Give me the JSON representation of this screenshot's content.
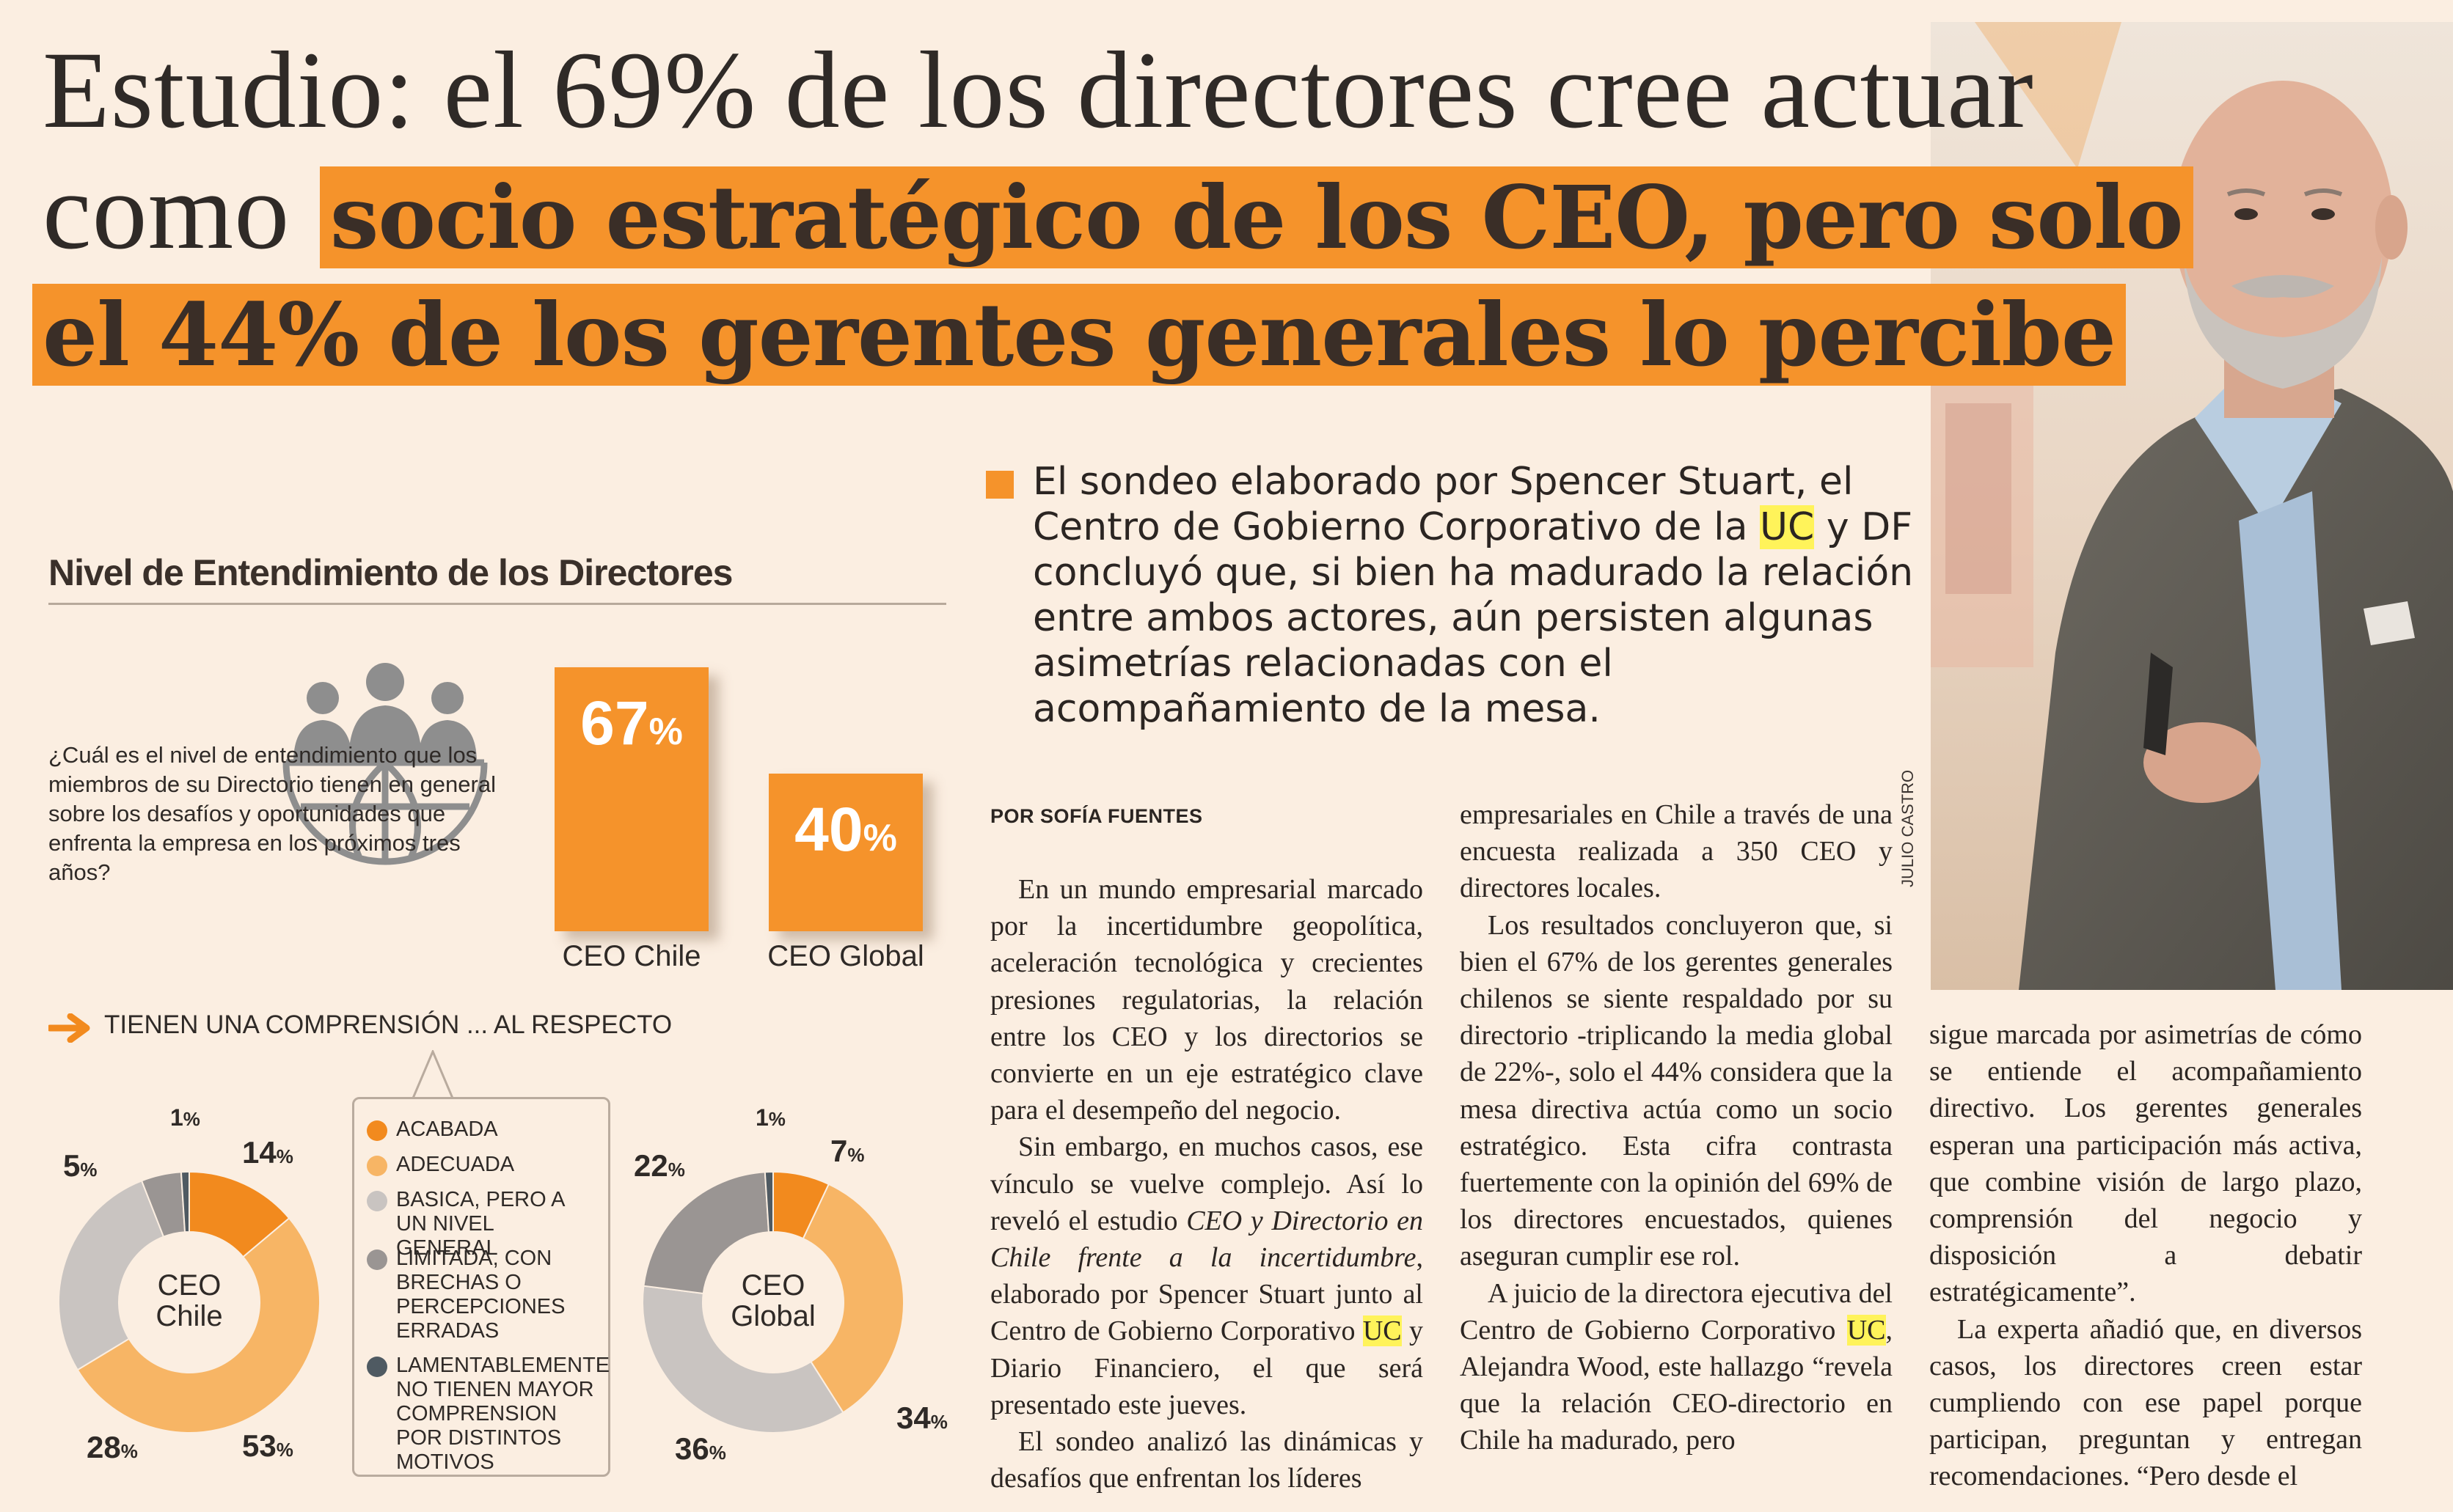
{
  "headline": {
    "line1": "Estudio: el 69% de los directores cree actuar",
    "line2_light": "como",
    "line2_bold": "socio estratégico de los CEO, pero solo",
    "line3_bold": "el 44% de los gerentes generales lo percibe"
  },
  "photo": {
    "credit": "JULIO CASTRO"
  },
  "lead": {
    "part1": "El sondeo elaborado por Spencer Stuart, el Centro de Gobierno Corporativo de la",
    "uc": "UC",
    "part2": "y DF concluyó que, si bien ha madurado la relación entre ambos actores, aún persisten algunas asimetrías relacionadas con el acompañamiento de la mesa."
  },
  "byline": "POR SOFÍA FUENTES",
  "infographic": {
    "title": "Nivel de Entendimiento de los Directores",
    "question": "¿Cuál es el nivel de entendimiento que los miembros de su Directorio tienen en general sobre los desafíos y oportunidades que enfrenta la empresa en los próximos tres años?",
    "subtitle": "TIENEN UNA COMPRENSIÓN ... AL RESPECTO",
    "legend": [
      {
        "label": "ACABADA",
        "color": "#f28a1e"
      },
      {
        "label": "ADECUADA",
        "color": "#f7b565"
      },
      {
        "label": "BASICA, PERO A UN NIVEL GENERAL",
        "color": "#c9c4c1"
      },
      {
        "label": "LIMITADA, CON BRECHAS O PERCEPCIONES ERRADAS",
        "color": "#9a9593"
      },
      {
        "label": "LAMENTABLEMENTE NO TIENEN MAYOR COMPRENSION POR DISTINTOS MOTIVOS",
        "color": "#4f5a62"
      }
    ]
  },
  "chart_data": [
    {
      "type": "bar",
      "categories": [
        "CEO Chile",
        "CEO Global"
      ],
      "values": [
        67,
        40
      ],
      "labels": [
        "67",
        "40"
      ],
      "unit": "%"
    },
    {
      "type": "pie",
      "center_label": "CEO Chile",
      "categories": [
        "ACABADA",
        "ADECUADA",
        "BASICA, PERO A UN NIVEL GENERAL",
        "LIMITADA, CON BRECHAS O PERCEPCIONES ERRADAS",
        "LAMENTABLEMENTE NO TIENEN MAYOR COMPRENSION POR DISTINTOS MOTIVOS"
      ],
      "values": [
        14,
        53,
        28,
        5,
        1
      ],
      "labels": [
        "14",
        "53",
        "28",
        "5",
        "1"
      ],
      "unit": "%"
    },
    {
      "type": "pie",
      "center_label": "CEO Global",
      "categories": [
        "ACABADA",
        "ADECUADA",
        "BASICA, PERO A UN NIVEL GENERAL",
        "LIMITADA, CON BRECHAS O PERCEPCIONES ERRADAS",
        "LAMENTABLEMENTE NO TIENEN MAYOR COMPRENSION POR DISTINTOS MOTIVOS"
      ],
      "values": [
        7,
        34,
        36,
        22,
        1
      ],
      "labels": [
        "7",
        "34",
        "36",
        "22",
        "1"
      ],
      "unit": "%"
    }
  ],
  "article": {
    "col1": {
      "p1": "En un mundo empresarial marcado por la incertidumbre geopolítica, aceleración tecnológica y crecientes presiones regulatorias, la relación entre los CEO y los directorios se convierte en un eje estratégico clave para el desempeño del negocio.",
      "p2a": "Sin embargo, en muchos casos, ese vínculo se vuelve complejo. Así lo reveló el estudio",
      "p2_italic": "CEO y Directorio en Chile frente a la incertidumbre",
      "p2b": ", elaborado por Spencer Stuart junto al Centro de Gobierno Corporativo",
      "p2_uc": "UC",
      "p2c": "y Diario Financiero, el que será presentado este jueves.",
      "p3": "El sondeo analizó las dinámicas y desafíos que enfrentan los líderes"
    },
    "col2": {
      "p1": "empresariales en Chile a través de una encuesta realizada a 350 CEO y directores locales.",
      "p2": "Los resultados concluyeron que, si bien el 67% de los gerentes generales chilenos se siente respaldado por su directorio -triplicando la media global de 22%-, solo el 44% considera que la mesa directiva actúa como un socio estratégico. Esta cifra contrasta fuertemente con la opinión del 69% de los directores encuestados, quienes aseguran cumplir ese rol.",
      "p3a": "A juicio de la directora ejecutiva del Centro de Gobierno Corporativo",
      "p3_uc": "UC",
      "p3b": ", Alejandra Wood, este hallazgo “revela que la relación CEO-directorio en Chile ha madurado, pero"
    },
    "col3": {
      "p1": "sigue marcada por asimetrías de cómo se entiende el acompañamiento directivo. Los gerentes generales esperan una participación más activa, que combine visión de largo plazo, comprensión del negocio y disposición a debatir estratégicamente”.",
      "p2": "La experta añadió que, en diversos casos, los directores creen estar cumpliendo con ese papel porque participan, preguntan y entregan recomendaciones. “Pero desde el"
    }
  }
}
